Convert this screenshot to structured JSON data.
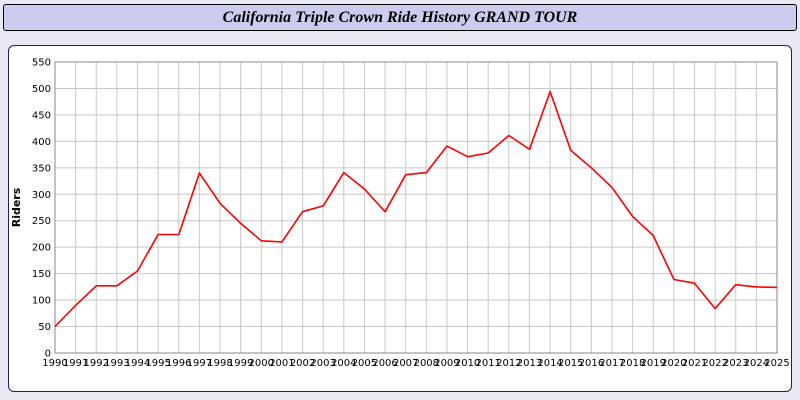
{
  "header": {
    "title": "California Triple Crown Ride History GRAND TOUR"
  },
  "colors": {
    "page_bg": "#e9e9f5",
    "header_bg": "#ccccee",
    "panel_border": "#222244",
    "grid": "#c8c8c8",
    "line": "#ff0000"
  },
  "chart_data": {
    "type": "line",
    "title": "California Triple Crown Ride History GRAND TOUR",
    "xlabel": "",
    "ylabel": "Riders",
    "ylim": [
      0,
      550
    ],
    "ytick_interval": 50,
    "grid": true,
    "legend": false,
    "line_color": "#ff0000",
    "x": [
      1990,
      1991,
      1992,
      1993,
      1994,
      1995,
      1996,
      1997,
      1998,
      1999,
      2000,
      2001,
      2002,
      2003,
      2004,
      2005,
      2006,
      2007,
      2008,
      2009,
      2010,
      2011,
      2012,
      2013,
      2014,
      2015,
      2016,
      2017,
      2018,
      2019,
      2020,
      2021,
      2022,
      2023,
      2024,
      2025
    ],
    "values": [
      50,
      90,
      127,
      127,
      155,
      224,
      224,
      340,
      283,
      245,
      212,
      210,
      267,
      278,
      341,
      310,
      267,
      337,
      341,
      391,
      371,
      378,
      411,
      385,
      494,
      383,
      350,
      313,
      258,
      222,
      139,
      132,
      84,
      129,
      125,
      124
    ]
  }
}
